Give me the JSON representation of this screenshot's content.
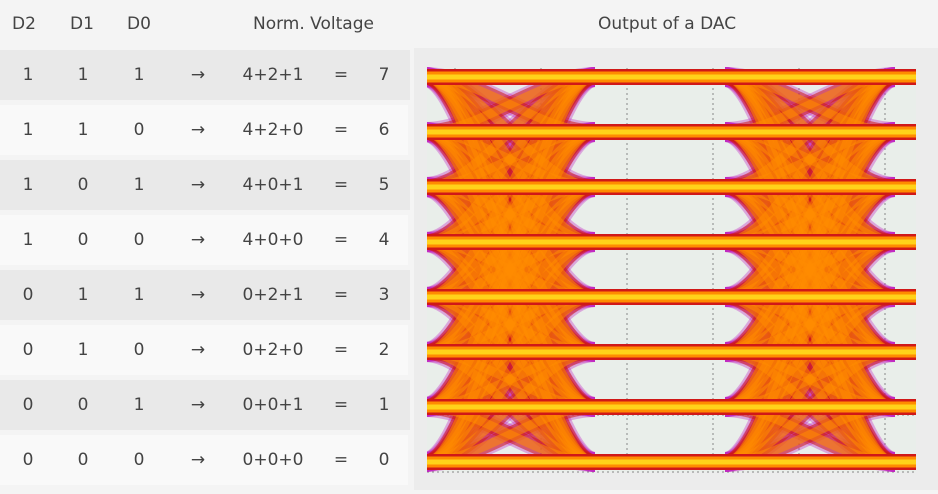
{
  "headers": {
    "d2": "D2",
    "d1": "D1",
    "d0": "D0",
    "voltage": "Norm. Voltage",
    "output": "Output of a DAC"
  },
  "arrow": "→",
  "equals": "=",
  "rows": [
    {
      "d2": "1",
      "d1": "1",
      "d0": "1",
      "expr": "4+2+1",
      "value": "7"
    },
    {
      "d2": "1",
      "d1": "1",
      "d0": "0",
      "expr": "4+2+0",
      "value": "6"
    },
    {
      "d2": "1",
      "d1": "0",
      "d0": "1",
      "expr": "4+0+1",
      "value": "5"
    },
    {
      "d2": "1",
      "d1": "0",
      "d0": "0",
      "expr": "4+0+0",
      "value": "4"
    },
    {
      "d2": "0",
      "d1": "1",
      "d0": "1",
      "expr": "0+2+1",
      "value": "3"
    },
    {
      "d2": "0",
      "d1": "1",
      "d0": "0",
      "expr": "0+2+0",
      "value": "2"
    },
    {
      "d2": "0",
      "d1": "0",
      "d0": "1",
      "expr": "0+0+1",
      "value": "1"
    },
    {
      "d2": "0",
      "d1": "0",
      "d0": "0",
      "expr": "0+0+0",
      "value": "0"
    }
  ],
  "colors": {
    "trace_core": "#ffd21a",
    "trace_mid": "#ff8c00",
    "trace_edge": "#d01818",
    "noise": "#c020c0",
    "grid": "#888888",
    "plot_bg": "#e9eeea"
  }
}
